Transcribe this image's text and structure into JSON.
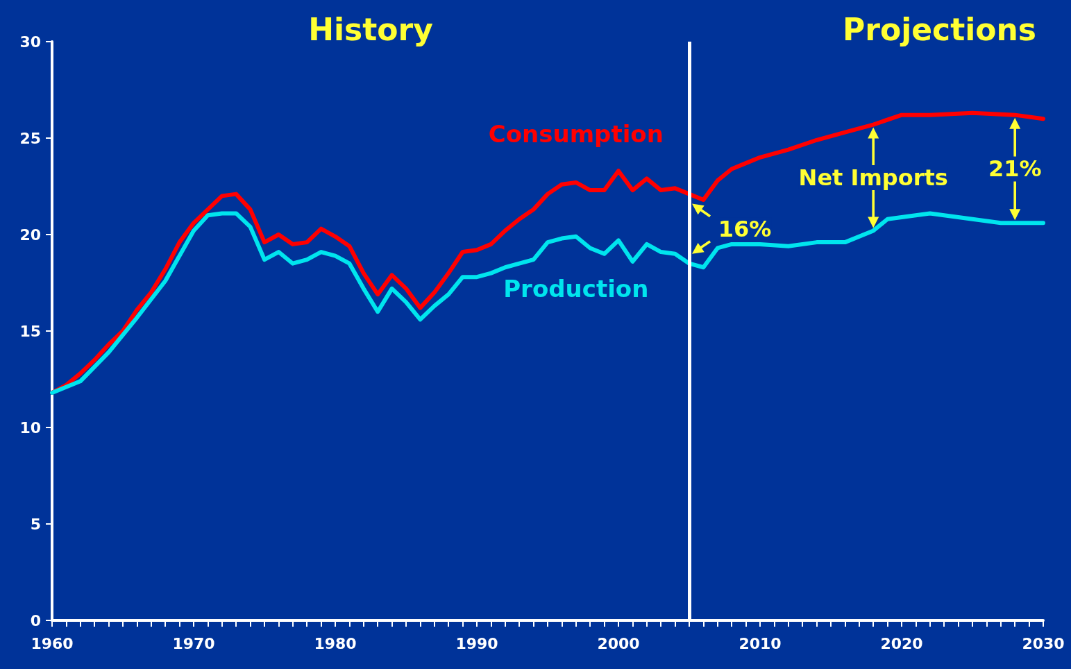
{
  "chart_data": {
    "type": "line",
    "legend": false,
    "grid": false,
    "marker": "none",
    "line_style": "solid",
    "xlim": [
      1960,
      2030
    ],
    "ylim": [
      0,
      30
    ],
    "yticks": [
      0,
      5,
      10,
      15,
      20,
      25,
      30
    ],
    "xticks": [
      1960,
      {
        "value": 1961,
        "label": null
      },
      {
        "value": 1962,
        "label": null
      },
      {
        "value": 1963,
        "label": null
      },
      {
        "value": 1964,
        "label": null
      },
      {
        "value": 1965,
        "label": null
      },
      {
        "value": 1966,
        "label": null
      },
      {
        "value": 1967,
        "label": null
      },
      {
        "value": 1968,
        "label": null
      },
      {
        "value": 1969,
        "label": null
      },
      1970,
      {
        "value": 1971,
        "label": null
      },
      {
        "value": 1972,
        "label": null
      },
      {
        "value": 1973,
        "label": null
      },
      {
        "value": 1974,
        "label": null
      },
      {
        "value": 1975,
        "label": null
      },
      {
        "value": 1976,
        "label": null
      },
      {
        "value": 1977,
        "label": null
      },
      {
        "value": 1978,
        "label": null
      },
      {
        "value": 1979,
        "label": null
      },
      1980,
      {
        "value": 1981,
        "label": null
      },
      {
        "value": 1982,
        "label": null
      },
      {
        "value": 1983,
        "label": null
      },
      {
        "value": 1984,
        "label": null
      },
      {
        "value": 1985,
        "label": null
      },
      {
        "value": 1986,
        "label": null
      },
      {
        "value": 1987,
        "label": null
      },
      {
        "value": 1988,
        "label": null
      },
      {
        "value": 1989,
        "label": null
      },
      1990,
      {
        "value": 1991,
        "label": null
      },
      {
        "value": 1992,
        "label": null
      },
      {
        "value": 1993,
        "label": null
      },
      {
        "value": 1994,
        "label": null
      },
      {
        "value": 1995,
        "label": null
      },
      {
        "value": 1996,
        "label": null
      },
      {
        "value": 1997,
        "label": null
      },
      {
        "value": 1998,
        "label": null
      },
      {
        "value": 1999,
        "label": null
      },
      2000,
      {
        "value": 2001,
        "label": null
      },
      {
        "value": 2002,
        "label": null
      },
      {
        "value": 2003,
        "label": null
      },
      {
        "value": 2004,
        "label": null
      },
      {
        "value": 2005,
        "label": null
      },
      {
        "value": 2006,
        "label": null
      },
      {
        "value": 2007,
        "label": null
      },
      {
        "value": 2008,
        "label": null
      },
      {
        "value": 2009,
        "label": null
      },
      2010,
      {
        "value": 2011,
        "label": null
      },
      {
        "value": 2012,
        "label": null
      },
      {
        "value": 2013,
        "label": null
      },
      {
        "value": 2014,
        "label": null
      },
      {
        "value": 2015,
        "label": null
      },
      {
        "value": 2016,
        "label": null
      },
      {
        "value": 2017,
        "label": null
      },
      {
        "value": 2018,
        "label": null
      },
      {
        "value": 2019,
        "label": null
      },
      2020,
      {
        "value": 2021,
        "label": null
      },
      {
        "value": 2022,
        "label": null
      },
      {
        "value": 2023,
        "label": null
      },
      {
        "value": 2024,
        "label": null
      },
      {
        "value": 2025,
        "label": null
      },
      {
        "value": 2026,
        "label": null
      },
      {
        "value": 2027,
        "label": null
      },
      {
        "value": 2028,
        "label": null
      },
      {
        "value": 2029,
        "label": null
      },
      2030
    ],
    "series": [
      {
        "name": "Consumption",
        "color": "#ff0000",
        "x": [
          1960,
          1961,
          1962,
          1963,
          1964,
          1965,
          1966,
          1967,
          1968,
          1969,
          1970,
          1971,
          1972,
          1973,
          1974,
          1975,
          1976,
          1977,
          1978,
          1979,
          1980,
          1981,
          1982,
          1983,
          1984,
          1985,
          1986,
          1987,
          1988,
          1989,
          1990,
          1991,
          1992,
          1993,
          1994,
          1995,
          1996,
          1997,
          1998,
          1999,
          2000,
          2001,
          2002,
          2003,
          2004,
          2005,
          2006,
          2007,
          2008,
          2009,
          2010,
          2012,
          2014,
          2016,
          2018,
          2020,
          2022,
          2025,
          2028,
          2030
        ],
        "values": [
          11.8,
          12.2,
          12.8,
          13.5,
          14.3,
          15.0,
          16.1,
          17.0,
          18.2,
          19.6,
          20.6,
          21.3,
          22.0,
          22.1,
          21.3,
          19.6,
          20.0,
          19.5,
          19.6,
          20.3,
          19.9,
          19.4,
          18.0,
          16.9,
          17.9,
          17.2,
          16.2,
          17.0,
          18.0,
          19.1,
          19.2,
          19.5,
          20.2,
          20.8,
          21.3,
          22.1,
          22.6,
          22.7,
          22.3,
          22.3,
          23.3,
          22.3,
          22.9,
          22.3,
          22.4,
          22.1,
          21.8,
          22.8,
          23.4,
          23.7,
          24.0,
          24.4,
          24.9,
          25.3,
          25.7,
          26.2,
          26.2,
          26.3,
          26.2,
          26.0
        ]
      },
      {
        "name": "Production",
        "color": "#00e5ee",
        "x": [
          1960,
          1962,
          1964,
          1965,
          1966,
          1968,
          1970,
          1971,
          1972,
          1973,
          1974,
          1975,
          1976,
          1977,
          1978,
          1979,
          1980,
          1981,
          1982,
          1983,
          1984,
          1985,
          1986,
          1987,
          1988,
          1989,
          1990,
          1991,
          1992,
          1993,
          1994,
          1995,
          1996,
          1997,
          1998,
          1999,
          2000,
          2001,
          2002,
          2003,
          2004,
          2005,
          2006,
          2007,
          2008,
          2010,
          2012,
          2014,
          2016,
          2018,
          2019,
          2022,
          2025,
          2027,
          2030
        ],
        "values": [
          11.8,
          12.4,
          13.9,
          14.8,
          15.7,
          17.6,
          20.2,
          21.0,
          21.1,
          21.1,
          20.4,
          18.7,
          19.1,
          18.5,
          18.7,
          19.1,
          18.9,
          18.5,
          17.2,
          16.0,
          17.2,
          16.5,
          15.6,
          16.3,
          16.9,
          17.8,
          17.8,
          18.0,
          18.3,
          18.5,
          18.7,
          19.6,
          19.8,
          19.9,
          19.3,
          19.0,
          19.7,
          18.6,
          19.5,
          19.1,
          19.0,
          18.5,
          18.3,
          19.3,
          19.5,
          19.5,
          19.4,
          19.6,
          19.6,
          20.2,
          20.8,
          21.1,
          20.8,
          20.6,
          20.6
        ]
      }
    ],
    "ref_lines": [
      {
        "axis": "x",
        "value": 2005,
        "color": "#ffffff"
      }
    ],
    "annotations": [
      "History",
      "Projections",
      {
        "text": "Net Imports",
        "x": 2018,
        "y": 25.7
      },
      {
        "text": "16%",
        "x": 2005,
        "y": 22.1
      },
      {
        "text": "21%",
        "x": 2028,
        "y": 26.2
      }
    ]
  }
}
